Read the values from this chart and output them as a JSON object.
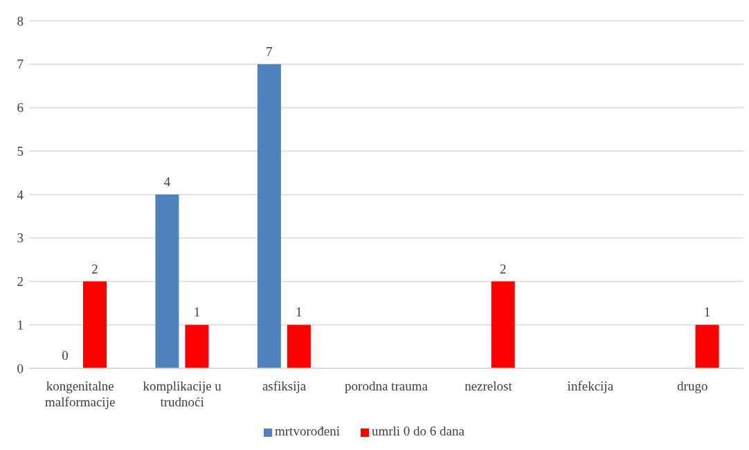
{
  "chart_data": {
    "type": "bar",
    "categories": [
      "kongenitalne malformacije",
      "komplikacije u trudnoći",
      "asfiksija",
      "porodna trauma",
      "nezrelost",
      "infekcija",
      "drugo"
    ],
    "series": [
      {
        "name": "mrtvorođeni",
        "color": "#4f81bd",
        "values": [
          0,
          4,
          7,
          null,
          null,
          null,
          null
        ]
      },
      {
        "name": "umrli 0 do 6 dana",
        "color": "#ff0000",
        "values": [
          2,
          1,
          1,
          null,
          2,
          null,
          1
        ]
      }
    ],
    "ylim": [
      0,
      8
    ],
    "yticks": [
      0,
      1,
      2,
      3,
      4,
      5,
      6,
      7,
      8
    ],
    "grid": "y",
    "legend": "bottom",
    "data_labels": true
  }
}
